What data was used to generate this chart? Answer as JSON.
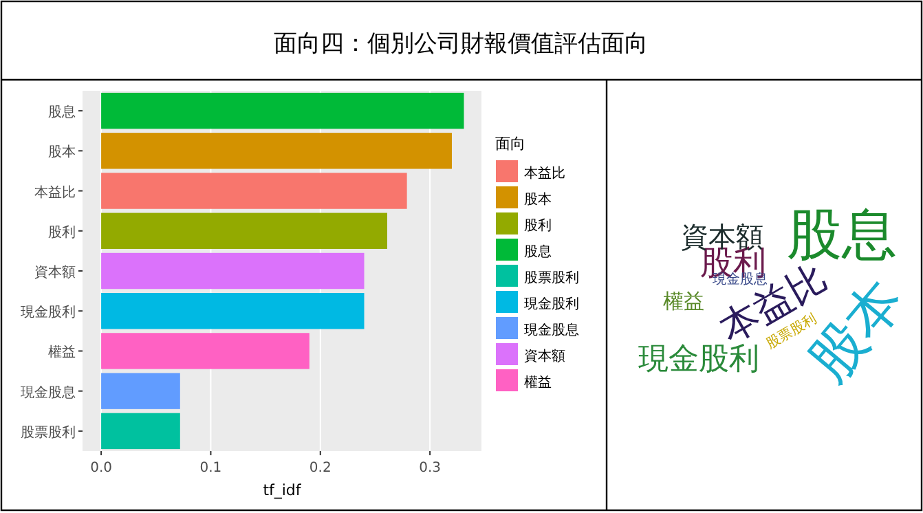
{
  "chart_data": [
    {
      "type": "bar",
      "title": "面向四：個別公司財報價值評估面向",
      "orientation": "horizontal",
      "categories": [
        "股息",
        "股本",
        "本益比",
        "股利",
        "資本額",
        "現金股利",
        "權益",
        "現金股息",
        "股票股利"
      ],
      "series": [
        {
          "name": "本益比",
          "color": "#f8766d",
          "values": [
            null,
            null,
            0.279,
            null,
            null,
            null,
            null,
            null,
            null
          ]
        },
        {
          "name": "股本",
          "color": "#d39200",
          "values": [
            null,
            0.32,
            null,
            null,
            null,
            null,
            null,
            null,
            null
          ]
        },
        {
          "name": "股利",
          "color": "#93aa00",
          "values": [
            null,
            null,
            null,
            0.261,
            null,
            null,
            null,
            null,
            null
          ]
        },
        {
          "name": "股息",
          "color": "#00ba38",
          "values": [
            0.331,
            null,
            null,
            null,
            null,
            null,
            null,
            null,
            null
          ]
        },
        {
          "name": "股票股利",
          "color": "#00c19f",
          "values": [
            null,
            null,
            null,
            null,
            null,
            null,
            null,
            null,
            0.072
          ]
        },
        {
          "name": "現金股利",
          "color": "#00b9e3",
          "values": [
            null,
            null,
            null,
            null,
            null,
            0.24,
            null,
            null,
            null
          ]
        },
        {
          "name": "現金股息",
          "color": "#619cff",
          "values": [
            null,
            null,
            null,
            null,
            null,
            null,
            null,
            0.072,
            null
          ]
        },
        {
          "name": "資本額",
          "color": "#db72fb",
          "values": [
            null,
            null,
            null,
            null,
            0.24,
            null,
            null,
            null,
            null
          ]
        },
        {
          "name": "權益",
          "color": "#ff61c3",
          "values": [
            null,
            null,
            null,
            null,
            null,
            null,
            0.19,
            null,
            null
          ]
        }
      ],
      "xlabel": "tf_idf",
      "legend_title": "面向",
      "legend": "right",
      "xlim": [
        -0.017,
        0.347
      ],
      "xticks": [
        {
          "value": 0,
          "label": "0.0"
        },
        0.1,
        0.2,
        0.3
      ],
      "grid": "x"
    },
    {
      "type": "other",
      "categories": [
        "股息",
        "股本",
        "本益比",
        "股利",
        "資本額",
        "現金股利",
        "權益",
        "現金股息",
        "股票股利"
      ],
      "colors": [
        "#1b8a2c",
        "#1aaed0",
        "#2a1b5c",
        "#6b1a4c",
        "#1c2c2c",
        "#2a8a3a",
        "#5a8a2a",
        "#3a4a8a",
        "#c8a800"
      ]
    }
  ]
}
